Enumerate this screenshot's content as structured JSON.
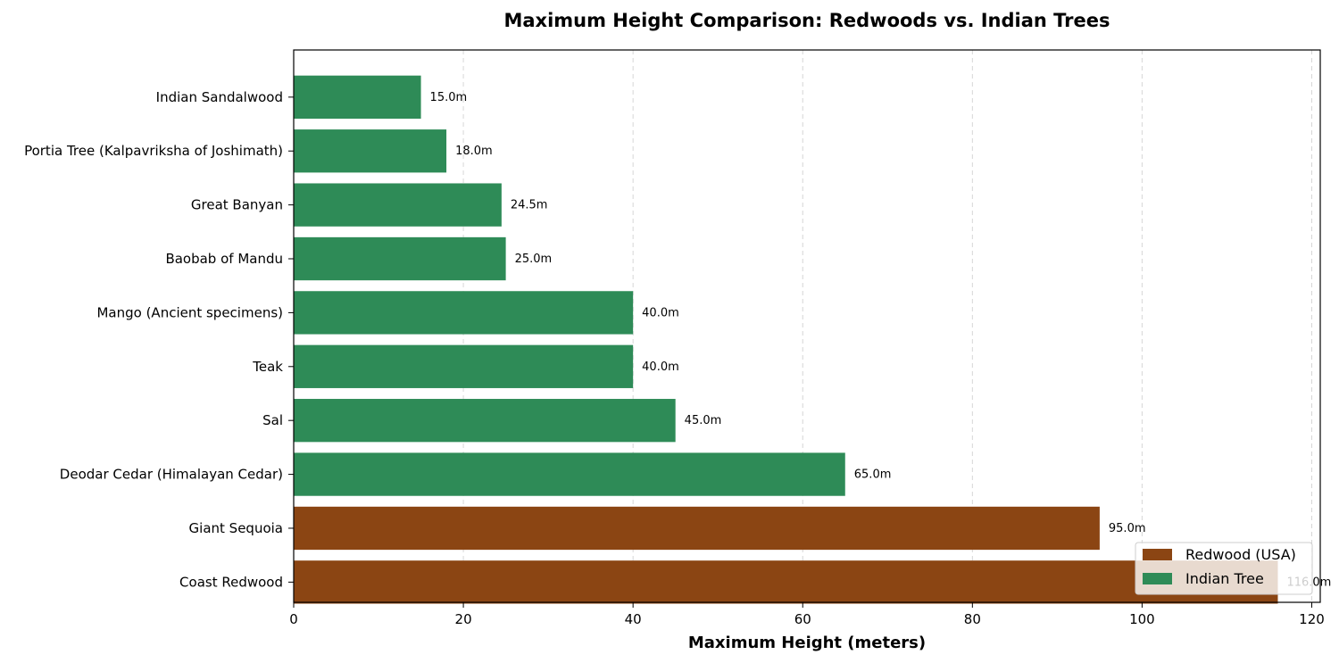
{
  "chart_data": {
    "type": "bar",
    "orientation": "horizontal",
    "title": "Maximum Height Comparison: Redwoods vs. Indian Trees",
    "xlabel": "Maximum Height (meters)",
    "ylabel": "",
    "xlim": [
      0,
      121
    ],
    "xticks": [
      0,
      20,
      40,
      60,
      80,
      100,
      120
    ],
    "grid": "x-dashed",
    "legend_position": "lower-right",
    "categories": [
      "Indian Sandalwood",
      "Portia Tree (Kalpavriksha of Joshimath)",
      "Great Banyan",
      "Baobab of Mandu",
      "Mango (Ancient specimens)",
      "Teak",
      "Sal",
      "Deodar Cedar (Himalayan Cedar)",
      "Giant Sequoia",
      "Coast Redwood"
    ],
    "values": [
      15.0,
      18.0,
      24.5,
      25.0,
      40.0,
      40.0,
      45.0,
      65.0,
      95.0,
      116.0
    ],
    "data_labels": [
      "15.0m",
      "18.0m",
      "24.5m",
      "25.0m",
      "40.0m",
      "40.0m",
      "45.0m",
      "65.0m",
      "95.0m",
      "116.0m"
    ],
    "groups": [
      "indian",
      "indian",
      "indian",
      "indian",
      "indian",
      "indian",
      "indian",
      "indian",
      "redwood",
      "redwood"
    ],
    "legend": [
      {
        "key": "redwood",
        "label": "Redwood (USA)",
        "color": "#8B4513"
      },
      {
        "key": "indian",
        "label": "Indian Tree",
        "color": "#2E8B57"
      }
    ]
  }
}
